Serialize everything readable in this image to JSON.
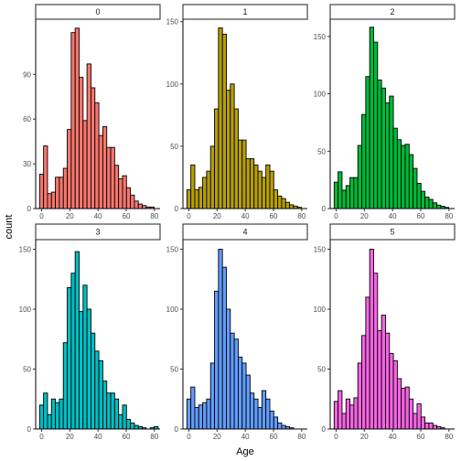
{
  "chart_data": {
    "type": "bar",
    "facet_titles": [
      "0",
      "1",
      "2",
      "3",
      "4",
      "5"
    ],
    "xlabel": "Age",
    "ylabel": "count",
    "x_ticks": [
      0,
      20,
      40,
      60,
      80
    ],
    "bin_width": 2.8,
    "bin_start": -1.4,
    "grid": false,
    "legend": "none",
    "colors": [
      "#F8766D",
      "#B79F00",
      "#00BA38",
      "#00BFC4",
      "#619CFF",
      "#F564E3"
    ],
    "panels": [
      {
        "title": "0",
        "y_ticks": [
          0,
          30,
          60,
          90
        ],
        "ylim": [
          0,
          127
        ],
        "values": [
          23,
          42,
          10,
          11,
          21,
          21,
          27,
          53,
          118,
          121,
          88,
          59,
          97,
          81,
          71,
          49,
          55,
          41,
          41,
          29,
          20,
          22,
          14,
          9,
          5,
          3,
          2,
          1,
          1,
          0
        ]
      },
      {
        "title": "1",
        "y_ticks": [
          0,
          50,
          100,
          150
        ],
        "ylim": [
          0,
          152
        ],
        "values": [
          15,
          35,
          15,
          17,
          25,
          30,
          50,
          80,
          145,
          140,
          95,
          100,
          80,
          55,
          55,
          40,
          40,
          35,
          30,
          25,
          35,
          30,
          15,
          10,
          8,
          5,
          3,
          2,
          1,
          0
        ]
      },
      {
        "title": "2",
        "y_ticks": [
          0,
          50,
          100,
          150
        ],
        "ylim": [
          0,
          165
        ],
        "values": [
          23,
          32,
          16,
          20,
          27,
          27,
          55,
          82,
          115,
          158,
          145,
          112,
          105,
          92,
          98,
          70,
          60,
          55,
          56,
          47,
          35,
          22,
          15,
          10,
          8,
          5,
          3,
          2,
          1,
          0
        ]
      },
      {
        "title": "3",
        "y_ticks": [
          0,
          50,
          100,
          150
        ],
        "ylim": [
          0,
          158
        ],
        "values": [
          20,
          30,
          12,
          25,
          22,
          25,
          72,
          118,
          130,
          148,
          98,
          120,
          100,
          80,
          65,
          57,
          40,
          30,
          30,
          25,
          12,
          20,
          8,
          5,
          3,
          2,
          1,
          0,
          1,
          2
        ]
      },
      {
        "title": "4",
        "y_ticks": [
          0,
          50,
          100,
          150
        ],
        "ylim": [
          0,
          158
        ],
        "values": [
          25,
          35,
          18,
          20,
          22,
          25,
          55,
          115,
          150,
          135,
          100,
          80,
          75,
          60,
          55,
          45,
          30,
          25,
          18,
          32,
          25,
          15,
          10,
          5,
          3,
          2,
          1,
          0,
          0,
          0
        ]
      },
      {
        "title": "5",
        "y_ticks": [
          0,
          50,
          100,
          150
        ],
        "ylim": [
          0,
          158
        ],
        "values": [
          23,
          32,
          13,
          25,
          20,
          26,
          55,
          78,
          110,
          150,
          130,
          82,
          95,
          80,
          63,
          57,
          42,
          34,
          35,
          25,
          13,
          21,
          10,
          5,
          5,
          3,
          2,
          1,
          0,
          0
        ]
      }
    ]
  }
}
